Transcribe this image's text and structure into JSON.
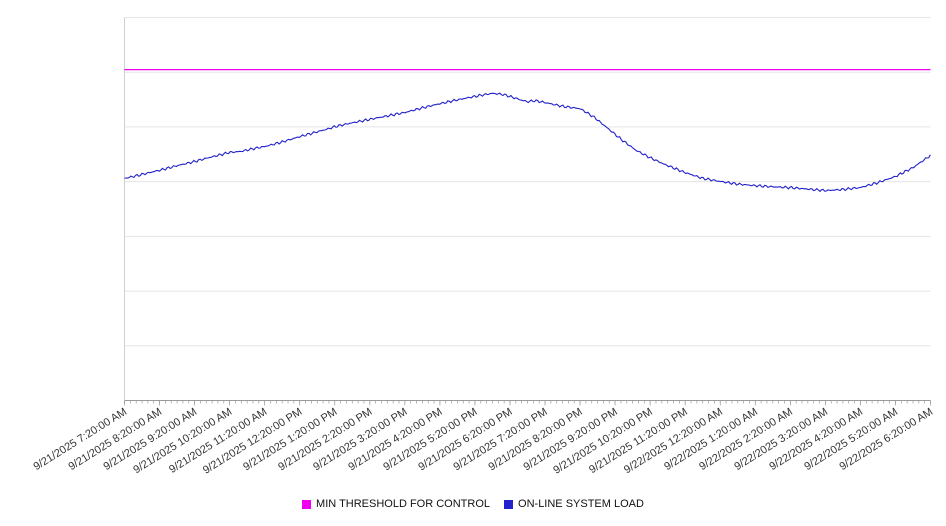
{
  "chart_data": {
    "type": "line",
    "title": "",
    "xlabel": "",
    "ylabel": "",
    "ylim": [
      0,
      100
    ],
    "y_grid_divisions": 7,
    "grid": true,
    "legend_position": "bottom",
    "background_color": "#ffffff",
    "gridline_color": "#e5e5e5",
    "axis_color": "#9a9a9a",
    "tick_label_color": "#333333",
    "noise_amplitude": 0.35,
    "x_categories": [
      "9/21/2025 7:20:00 AM",
      "9/21/2025 8:20:00 AM",
      "9/21/2025 9:20:00 AM",
      "9/21/2025 10:20:00 AM",
      "9/21/2025 11:20:00 AM",
      "9/21/2025 12:20:00 PM",
      "9/21/2025 1:20:00 PM",
      "9/21/2025 2:20:00 PM",
      "9/21/2025 3:20:00 PM",
      "9/21/2025 4:20:00 PM",
      "9/21/2025 5:20:00 PM",
      "9/21/2025 6:20:00 PM",
      "9/21/2025 7:20:00 PM",
      "9/21/2025 8:20:00 PM",
      "9/21/2025 9:20:00 PM",
      "9/21/2025 10:20:00 PM",
      "9/21/2025 11:20:00 PM",
      "9/22/2025 12:20:00 AM",
      "9/22/2025 1:20:00 AM",
      "9/22/2025 2:20:00 AM",
      "9/22/2025 3:20:00 AM",
      "9/22/2025 4:20:00 AM",
      "9/22/2025 5:20:00 AM",
      "9/22/2025 6:20:00 AM"
    ],
    "threshold": {
      "name": "MIN THRESHOLD FOR CONTROL",
      "value": 86.4,
      "color": "#ee00ee"
    },
    "series": [
      {
        "name": "ON-LINE SYSTEM LOAD",
        "color": "#2222cc",
        "points": [
          [
            0,
            58.0
          ],
          [
            0.4,
            58.8
          ],
          [
            0.8,
            59.7
          ],
          [
            1,
            60.1
          ],
          [
            1.5,
            61.3
          ],
          [
            2,
            62.4
          ],
          [
            2.4,
            63.4
          ],
          [
            2.8,
            64.3
          ],
          [
            3,
            64.8
          ],
          [
            3.3,
            65.0
          ],
          [
            3.7,
            65.8
          ],
          [
            4,
            66.3
          ],
          [
            4.5,
            67.5
          ],
          [
            5,
            68.9
          ],
          [
            5.4,
            69.9
          ],
          [
            5.8,
            70.9
          ],
          [
            6,
            71.5
          ],
          [
            6.5,
            72.5
          ],
          [
            7,
            73.4
          ],
          [
            7.5,
            74.3
          ],
          [
            8,
            75.2
          ],
          [
            8.5,
            76.4
          ],
          [
            9,
            77.5
          ],
          [
            9.5,
            78.5
          ],
          [
            10,
            79.4
          ],
          [
            10.3,
            79.9
          ],
          [
            10.5,
            80.2
          ],
          [
            10.8,
            79.9
          ],
          [
            11,
            79.4
          ],
          [
            11.3,
            78.5
          ],
          [
            11.5,
            78.0
          ],
          [
            11.7,
            78.3
          ],
          [
            12,
            77.8
          ],
          [
            12.5,
            76.8
          ],
          [
            13,
            76.2
          ],
          [
            13.4,
            74.0
          ],
          [
            13.8,
            71.0
          ],
          [
            14.2,
            68.0
          ],
          [
            14.6,
            65.3
          ],
          [
            15,
            63.4
          ],
          [
            15.4,
            61.7
          ],
          [
            16,
            59.5
          ],
          [
            16.5,
            58.0
          ],
          [
            17,
            57.2
          ],
          [
            17.5,
            56.5
          ],
          [
            18,
            56.1
          ],
          [
            18.5,
            55.8
          ],
          [
            19,
            55.6
          ],
          [
            19.5,
            55.2
          ],
          [
            20,
            54.8
          ],
          [
            20.5,
            55.1
          ],
          [
            21,
            55.6
          ],
          [
            21.5,
            56.9
          ],
          [
            22,
            58.5
          ],
          [
            22.5,
            60.8
          ],
          [
            23,
            64.0
          ]
        ]
      }
    ]
  }
}
